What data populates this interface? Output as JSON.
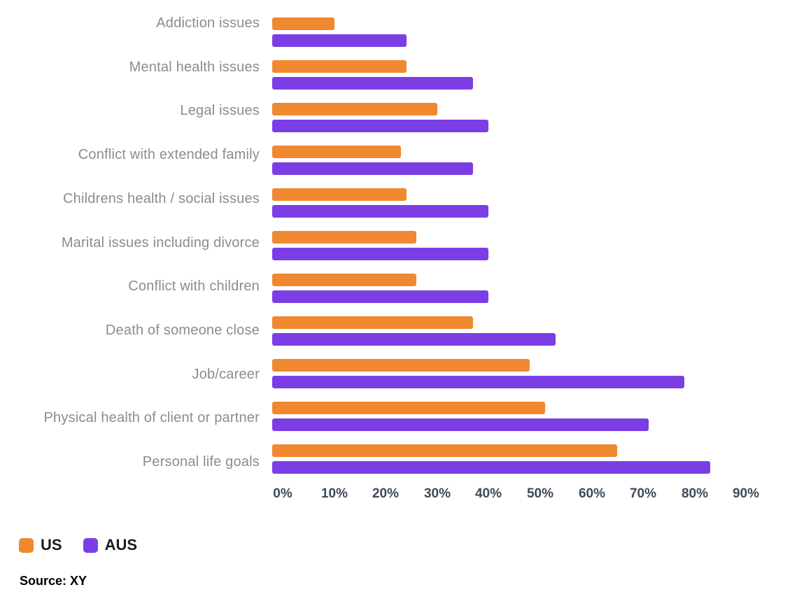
{
  "chart_data": {
    "type": "bar",
    "orientation": "horizontal",
    "categories": [
      "Addiction issues",
      "Mental health issues",
      "Legal issues",
      "Conflict with extended family",
      "Childrens health / social issues",
      "Marital issues including divorce",
      "Conflict with children",
      "Death of someone close",
      "Job/career",
      "Physical health of client or partner",
      "Personal life goals"
    ],
    "series": [
      {
        "name": "US",
        "color": "#EF882F",
        "values": [
          10,
          24,
          30,
          23,
          24,
          26,
          26,
          37,
          48,
          51,
          65
        ]
      },
      {
        "name": "AUS",
        "color": "#7B3EE5",
        "values": [
          24,
          37,
          40,
          37,
          40,
          40,
          40,
          53,
          78,
          71,
          83
        ]
      }
    ],
    "x_axis": {
      "ticks": [
        "0%",
        "10%",
        "20%",
        "30%",
        "40%",
        "50%",
        "60%",
        "70%",
        "80%",
        "90%"
      ],
      "min": 0,
      "max": 90,
      "unit": "%",
      "grid": false
    },
    "legend_position": "bottom-left",
    "title": "",
    "xlabel": "",
    "ylabel": ""
  },
  "legend": {
    "items": [
      {
        "label": "US",
        "color": "#EF882F"
      },
      {
        "label": "AUS",
        "color": "#7B3EE5"
      }
    ]
  },
  "footer": {
    "source_label": "Source: XY"
  },
  "colors": {
    "us_bar": "#EF882F",
    "aus_bar": "#7B3EE5",
    "category_label": "#8C8C8C",
    "axis_label": "#3E4A5B",
    "legend_text": "#1C1C1C",
    "background": "#FFFFFF"
  }
}
